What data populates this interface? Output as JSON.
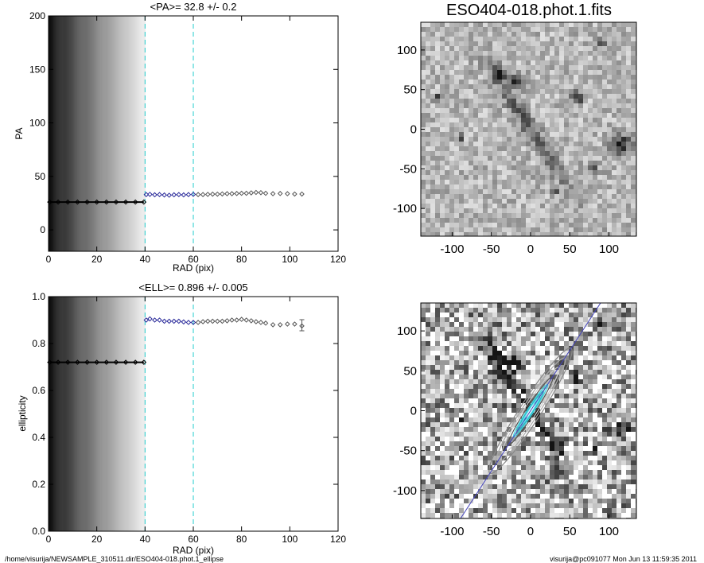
{
  "chart_data": [
    {
      "type": "scatter",
      "title": "<PA>=  32.8 +/-   0.2",
      "xlabel": "RAD (pix)",
      "ylabel": "PA",
      "xlim": [
        0,
        120
      ],
      "ylim": [
        -20,
        200
      ],
      "xticks": [
        "0",
        "20",
        "40",
        "60",
        "80",
        "100",
        "120"
      ],
      "yticks": [
        "0",
        "50",
        "100",
        "150",
        "200"
      ],
      "vlines": [
        {
          "x": 40,
          "color": "#22cccc"
        },
        {
          "x": 60,
          "color": "#22cccc"
        }
      ],
      "series": [
        {
          "color": "#000000",
          "x": [
            0.5,
            4,
            8,
            12,
            16,
            20,
            24,
            28,
            32,
            36,
            39.5
          ],
          "y": [
            26,
            26,
            26,
            26,
            26,
            26,
            26,
            26,
            26,
            26,
            26
          ]
        },
        {
          "color": "#2a2a9a",
          "x": [
            40.5,
            42,
            44,
            46,
            48,
            50,
            52,
            54,
            56,
            58,
            60
          ],
          "y": [
            33,
            33.2,
            32.8,
            33,
            32.6,
            32.4,
            32.8,
            33,
            32.7,
            33,
            33.2
          ]
        },
        {
          "color": "#555555",
          "x": [
            62,
            64,
            66,
            68,
            70,
            72,
            74,
            76,
            78,
            80,
            82,
            84,
            86,
            88,
            90,
            93,
            96,
            99,
            102,
            105
          ],
          "y": [
            33,
            33,
            33.2,
            33.4,
            33.4,
            33.6,
            33.8,
            33.8,
            34,
            34.2,
            34.2,
            34.6,
            35,
            34.8,
            34.2,
            33.8,
            34,
            33.8,
            33.5,
            33.5
          ]
        }
      ]
    },
    {
      "type": "scatter",
      "title": "<ELL>= 0.896 +/-  0.005",
      "xlabel": "RAD (pix)",
      "ylabel": "ellipticity",
      "xlim": [
        0,
        120
      ],
      "ylim": [
        0,
        1
      ],
      "xticks": [
        "0",
        "20",
        "40",
        "60",
        "80",
        "100",
        "120"
      ],
      "yticks": [
        "0.0",
        "0.2",
        "0.4",
        "0.6",
        "0.8",
        "1.0"
      ],
      "vlines": [
        {
          "x": 40,
          "color": "#22cccc"
        },
        {
          "x": 60,
          "color": "#22cccc"
        }
      ],
      "series": [
        {
          "color": "#000000",
          "x": [
            0.5,
            4,
            8,
            12,
            16,
            20,
            24,
            28,
            32,
            36,
            39.5
          ],
          "y": [
            0.72,
            0.72,
            0.72,
            0.72,
            0.72,
            0.72,
            0.72,
            0.72,
            0.72,
            0.72,
            0.72
          ]
        },
        {
          "color": "#2a2a9a",
          "x": [
            40.5,
            42,
            44,
            46,
            48,
            50,
            52,
            54,
            56,
            58,
            60
          ],
          "y": [
            0.9,
            0.905,
            0.9,
            0.9,
            0.895,
            0.895,
            0.895,
            0.895,
            0.892,
            0.89,
            0.89
          ]
        },
        {
          "color": "#555555",
          "x": [
            62,
            64,
            66,
            68,
            70,
            72,
            74,
            76,
            78,
            80,
            82,
            84,
            86,
            88,
            90,
            93,
            96,
            99,
            102,
            105
          ],
          "y": [
            0.89,
            0.893,
            0.895,
            0.895,
            0.895,
            0.895,
            0.897,
            0.9,
            0.9,
            0.903,
            0.9,
            0.897,
            0.893,
            0.89,
            0.887,
            0.88,
            0.88,
            0.883,
            0.883,
            0.875
          ]
        }
      ]
    },
    {
      "type": "heatmap",
      "title": "ESO404-018.phot.1.fits",
      "xlim": [
        -140,
        135
      ],
      "ylim": [
        -135,
        135
      ],
      "xticks": [
        "-100",
        "-50",
        "0",
        "50",
        "100"
      ],
      "yticks": [
        "100",
        "50",
        "0",
        "-50",
        "-100"
      ]
    },
    {
      "type": "heatmap",
      "title": "",
      "xlim": [
        -140,
        135
      ],
      "ylim": [
        -135,
        135
      ],
      "xticks": [
        "-100",
        "-50",
        "0",
        "50",
        "100"
      ],
      "yticks": [
        "100",
        "50",
        "0",
        "-50",
        "-100"
      ]
    }
  ],
  "footer": {
    "left": "/home/visurija/NEWSAMPLE_310511.dir/ESO404-018.phot.1_ellipse",
    "right": "visurija@pc091077  Mon Jun 13 11:59:35 2011"
  }
}
